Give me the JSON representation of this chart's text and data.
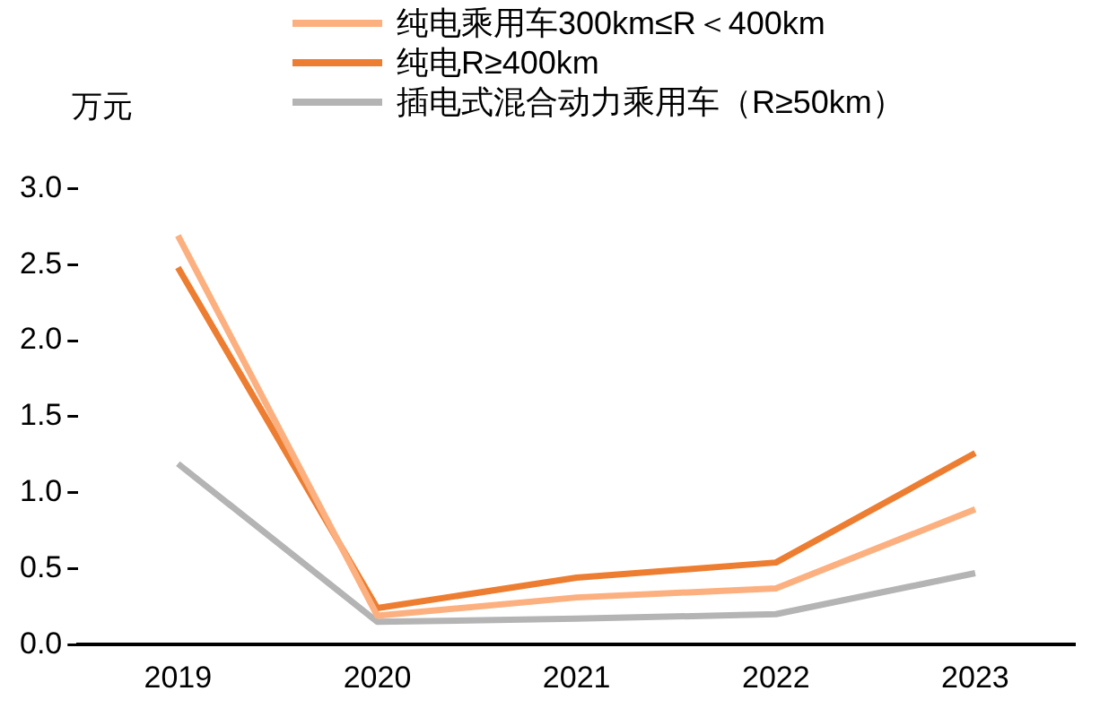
{
  "chart_data": {
    "type": "line",
    "ylabel": "万元",
    "categories": [
      "2019",
      "2020",
      "2021",
      "2022",
      "2023"
    ],
    "series": [
      {
        "name": "纯电乘用车300km≤R＜400km",
        "color": "#fdb07f",
        "values": [
          2.69,
          0.19,
          0.31,
          0.37,
          0.89
        ]
      },
      {
        "name": "纯电R≥400km",
        "color": "#ed7d31",
        "values": [
          2.48,
          0.24,
          0.44,
          0.54,
          1.26
        ]
      },
      {
        "name": "插电式混合动力乘用车（R≥50km）",
        "color": "#b4b4b4",
        "values": [
          1.19,
          0.15,
          0.17,
          0.2,
          0.47
        ]
      }
    ],
    "ylim": [
      0,
      3
    ],
    "yticks": [
      {
        "value": 0,
        "label": "0.0"
      },
      0.5,
      {
        "value": 1,
        "label": "1.0"
      },
      1.5,
      {
        "value": 2,
        "label": "2.0"
      },
      2.5,
      {
        "value": 3,
        "label": "3.0"
      }
    ],
    "grid": false,
    "legend": "top",
    "marker": "none",
    "line_style": "solid"
  }
}
